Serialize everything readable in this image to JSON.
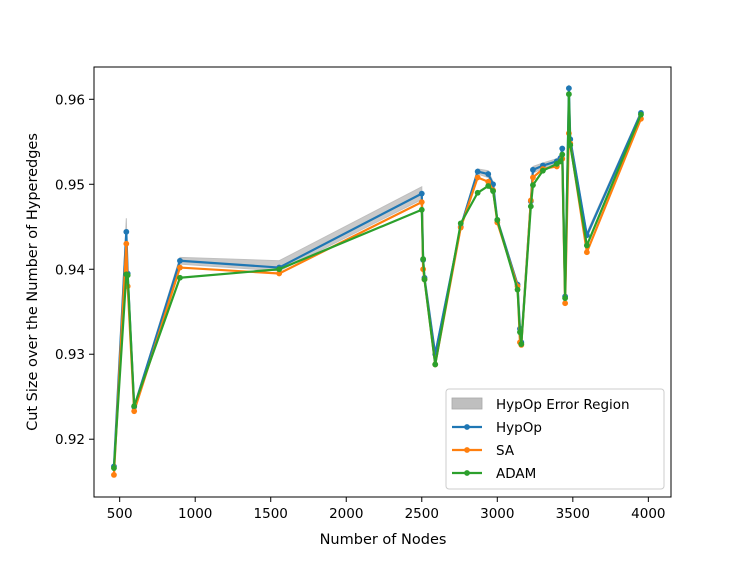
{
  "chart_data": {
    "type": "line",
    "title": "",
    "xlabel": "Number of Nodes",
    "ylabel": "Cut Size over the Number of Hyperedges",
    "xlim": [
      330,
      4150
    ],
    "ylim": [
      0.9132,
      0.9638
    ],
    "xticks": [
      500,
      1000,
      1500,
      2000,
      2500,
      3000,
      3500,
      4000
    ],
    "xtick_labels": [
      "500",
      "1000",
      "1500",
      "2000",
      "2500",
      "3000",
      "3500",
      "4000"
    ],
    "yticks": [
      0.92,
      0.93,
      0.94,
      0.95,
      0.96
    ],
    "ytick_labels": [
      "0.92",
      "0.93",
      "0.94",
      "0.95",
      "0.96"
    ],
    "grid": false,
    "legend_position": "bottom-right",
    "legend": [
      {
        "label": "HypOp Error Region",
        "kind": "patch",
        "color": "#bfbfbf"
      },
      {
        "label": "HypOp",
        "kind": "line",
        "color": "#1f77b4"
      },
      {
        "label": "SA",
        "kind": "line",
        "color": "#ff7f0e"
      },
      {
        "label": "ADAM",
        "kind": "line",
        "color": "#2ca02c"
      }
    ],
    "x": [
      462,
      544,
      553,
      596,
      899,
      1556,
      2500,
      2509,
      2518,
      2589,
      2758,
      2870,
      2940,
      2972,
      3000,
      3134,
      3150,
      3159,
      3222,
      3236,
      3302,
      3394,
      3419,
      3430,
      3449,
      3474,
      3483,
      3593,
      3951
    ],
    "series": [
      {
        "name": "HypOp",
        "color": "#1f77b4",
        "values": [
          0.9168,
          0.9444,
          0.9395,
          0.9238,
          0.941,
          0.9402,
          0.9489,
          0.9411,
          0.939,
          0.93,
          0.945,
          0.9515,
          0.9512,
          0.95,
          0.9458,
          0.9382,
          0.933,
          0.9314,
          0.948,
          0.9517,
          0.9522,
          0.9527,
          0.9531,
          0.9542,
          0.9368,
          0.9613,
          0.9553,
          0.944,
          0.9584
        ]
      },
      {
        "name": "SA",
        "color": "#ff7f0e",
        "values": [
          0.9158,
          0.943,
          0.938,
          0.9233,
          0.9402,
          0.9395,
          0.9479,
          0.94,
          0.9388,
          0.9288,
          0.9449,
          0.9508,
          0.9503,
          0.9493,
          0.9455,
          0.938,
          0.9314,
          0.9311,
          0.9481,
          0.9508,
          0.9518,
          0.9521,
          0.9527,
          0.953,
          0.936,
          0.956,
          0.9548,
          0.942,
          0.9577
        ]
      },
      {
        "name": "ADAM",
        "color": "#2ca02c",
        "values": [
          0.9166,
          0.9394,
          0.9393,
          0.9239,
          0.939,
          0.94,
          0.947,
          0.9412,
          0.9388,
          0.9288,
          0.9454,
          0.949,
          0.9498,
          0.9492,
          0.9458,
          0.9376,
          0.9326,
          0.9312,
          0.9474,
          0.9499,
          0.9516,
          0.9524,
          0.9527,
          0.9535,
          0.9366,
          0.9606,
          0.9546,
          0.9428,
          0.9582
        ]
      }
    ],
    "error_region": {
      "name": "HypOp Error Region",
      "color": "#bfbfbf",
      "lower": [
        0.9166,
        0.9422,
        0.9392,
        0.9236,
        0.9406,
        0.9398,
        0.9482,
        0.9408,
        0.9388,
        0.9297,
        0.9448,
        0.9512,
        0.9508,
        0.9497,
        0.9455,
        0.938,
        0.9327,
        0.9312,
        0.9478,
        0.9513,
        0.9519,
        0.9524,
        0.9528,
        0.9539,
        0.9365,
        0.9609,
        0.955,
        0.9437,
        0.9582
      ],
      "upper": [
        0.917,
        0.946,
        0.9398,
        0.924,
        0.9414,
        0.941,
        0.9497,
        0.9414,
        0.9392,
        0.9303,
        0.9452,
        0.9518,
        0.9516,
        0.9503,
        0.9461,
        0.9384,
        0.9333,
        0.9316,
        0.9482,
        0.9521,
        0.9525,
        0.953,
        0.9534,
        0.9545,
        0.9371,
        0.9617,
        0.9556,
        0.9443,
        0.9586
      ]
    }
  }
}
